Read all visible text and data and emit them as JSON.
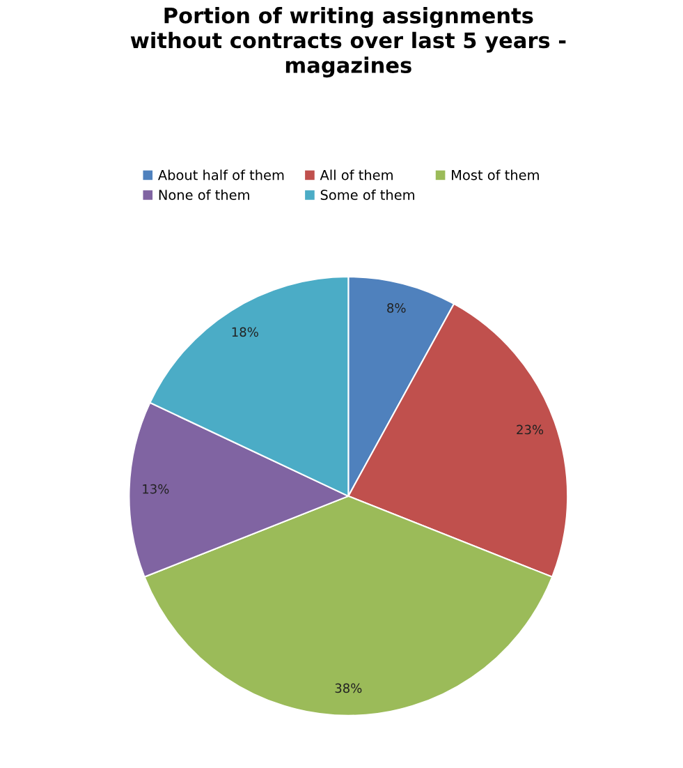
{
  "chart_data": {
    "type": "pie",
    "title": "Portion of writing assignments\nwithout contracts over last 5 years -\nmagazines",
    "categories": [
      "About half of them",
      "All of them",
      "Most of them",
      "None of them",
      "Some of them"
    ],
    "values": [
      8,
      23,
      38,
      13,
      18
    ],
    "value_labels": [
      "8%",
      "23%",
      "38%",
      "13%",
      "18%"
    ],
    "colors": [
      "#4f81bd",
      "#c0504d",
      "#9bbb59",
      "#8064a2",
      "#4bacc6"
    ],
    "legend": "top"
  }
}
